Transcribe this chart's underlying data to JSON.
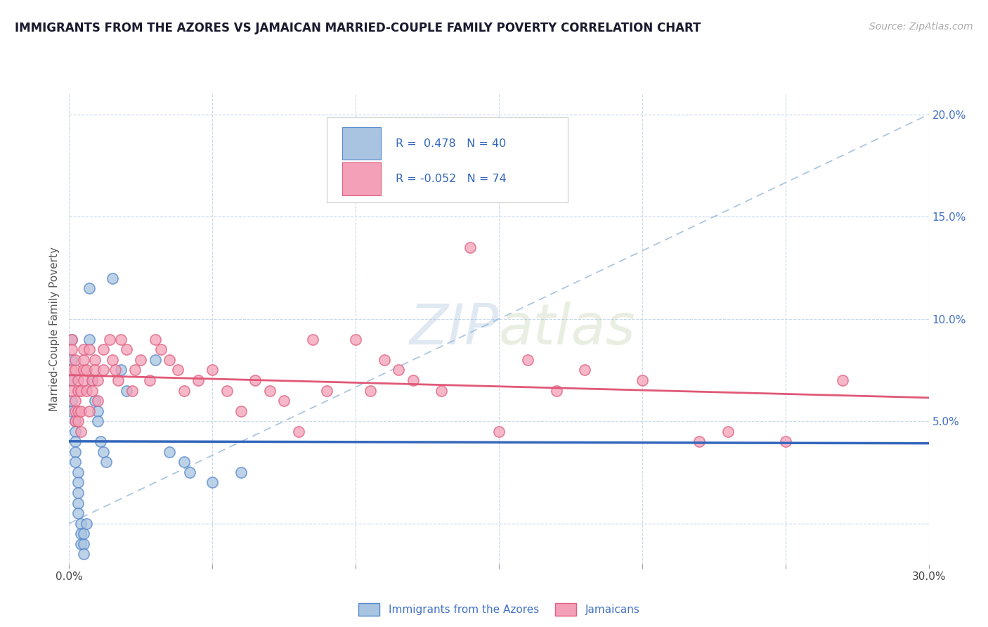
{
  "title": "IMMIGRANTS FROM THE AZORES VS JAMAICAN MARRIED-COUPLE FAMILY POVERTY CORRELATION CHART",
  "source": "Source: ZipAtlas.com",
  "ylabel": "Married-Couple Family Poverty",
  "xmin": 0.0,
  "xmax": 0.3,
  "ymin": -0.02,
  "ymax": 0.21,
  "x_ticks": [
    0.0,
    0.05,
    0.1,
    0.15,
    0.2,
    0.25,
    0.3
  ],
  "x_tick_labels": [
    "0.0%",
    "",
    "",
    "",
    "",
    "",
    "30.0%"
  ],
  "y_ticks": [
    0.0,
    0.05,
    0.1,
    0.15,
    0.2
  ],
  "right_tick_labels": [
    "",
    "5.0%",
    "10.0%",
    "15.0%",
    "20.0%"
  ],
  "color_azores": "#a8c4e0",
  "color_jamaican": "#f4a0b8",
  "color_azores_edge": "#5588cc",
  "color_jamaican_edge": "#e06080",
  "color_azores_line": "#3366bb",
  "color_jamaican_line": "#e05878",
  "color_diagonal": "#99b8d8",
  "watermark_text": "ZIPatlas",
  "legend_label1": "R =  0.478   N = 40",
  "legend_label2": "R = -0.052   N = 74",
  "bottom_label1": "Immigrants from the Azores",
  "bottom_label2": "Jamaicans",
  "azores_points": [
    [
      0.001,
      0.09
    ],
    [
      0.001,
      0.08
    ],
    [
      0.001,
      0.07
    ],
    [
      0.001,
      0.06
    ],
    [
      0.001,
      0.055
    ],
    [
      0.002,
      0.05
    ],
    [
      0.002,
      0.045
    ],
    [
      0.002,
      0.04
    ],
    [
      0.002,
      0.035
    ],
    [
      0.002,
      0.03
    ],
    [
      0.003,
      0.025
    ],
    [
      0.003,
      0.02
    ],
    [
      0.003,
      0.015
    ],
    [
      0.003,
      0.01
    ],
    [
      0.003,
      0.005
    ],
    [
      0.004,
      0.0
    ],
    [
      0.004,
      -0.005
    ],
    [
      0.004,
      -0.01
    ],
    [
      0.005,
      -0.01
    ],
    [
      0.005,
      -0.015
    ],
    [
      0.005,
      -0.005
    ],
    [
      0.006,
      0.0
    ],
    [
      0.007,
      0.115
    ],
    [
      0.007,
      0.09
    ],
    [
      0.008,
      0.07
    ],
    [
      0.009,
      0.06
    ],
    [
      0.01,
      0.055
    ],
    [
      0.01,
      0.05
    ],
    [
      0.011,
      0.04
    ],
    [
      0.012,
      0.035
    ],
    [
      0.013,
      0.03
    ],
    [
      0.015,
      0.12
    ],
    [
      0.018,
      0.075
    ],
    [
      0.02,
      0.065
    ],
    [
      0.03,
      0.08
    ],
    [
      0.035,
      0.035
    ],
    [
      0.04,
      0.03
    ],
    [
      0.042,
      0.025
    ],
    [
      0.05,
      0.02
    ],
    [
      0.06,
      0.025
    ]
  ],
  "jamaican_points": [
    [
      0.001,
      0.09
    ],
    [
      0.001,
      0.085
    ],
    [
      0.001,
      0.075
    ],
    [
      0.001,
      0.07
    ],
    [
      0.001,
      0.065
    ],
    [
      0.002,
      0.06
    ],
    [
      0.002,
      0.055
    ],
    [
      0.002,
      0.05
    ],
    [
      0.002,
      0.075
    ],
    [
      0.002,
      0.08
    ],
    [
      0.003,
      0.07
    ],
    [
      0.003,
      0.065
    ],
    [
      0.003,
      0.055
    ],
    [
      0.003,
      0.05
    ],
    [
      0.004,
      0.045
    ],
    [
      0.004,
      0.055
    ],
    [
      0.004,
      0.065
    ],
    [
      0.005,
      0.07
    ],
    [
      0.005,
      0.075
    ],
    [
      0.005,
      0.08
    ],
    [
      0.005,
      0.085
    ],
    [
      0.006,
      0.075
    ],
    [
      0.006,
      0.065
    ],
    [
      0.007,
      0.055
    ],
    [
      0.007,
      0.085
    ],
    [
      0.008,
      0.07
    ],
    [
      0.008,
      0.065
    ],
    [
      0.009,
      0.08
    ],
    [
      0.009,
      0.075
    ],
    [
      0.01,
      0.06
    ],
    [
      0.01,
      0.07
    ],
    [
      0.012,
      0.075
    ],
    [
      0.012,
      0.085
    ],
    [
      0.014,
      0.09
    ],
    [
      0.015,
      0.08
    ],
    [
      0.016,
      0.075
    ],
    [
      0.017,
      0.07
    ],
    [
      0.018,
      0.09
    ],
    [
      0.02,
      0.085
    ],
    [
      0.022,
      0.065
    ],
    [
      0.023,
      0.075
    ],
    [
      0.025,
      0.08
    ],
    [
      0.028,
      0.07
    ],
    [
      0.03,
      0.09
    ],
    [
      0.032,
      0.085
    ],
    [
      0.035,
      0.08
    ],
    [
      0.038,
      0.075
    ],
    [
      0.04,
      0.065
    ],
    [
      0.045,
      0.07
    ],
    [
      0.05,
      0.075
    ],
    [
      0.055,
      0.065
    ],
    [
      0.06,
      0.055
    ],
    [
      0.065,
      0.07
    ],
    [
      0.07,
      0.065
    ],
    [
      0.075,
      0.06
    ],
    [
      0.08,
      0.045
    ],
    [
      0.085,
      0.09
    ],
    [
      0.09,
      0.065
    ],
    [
      0.1,
      0.09
    ],
    [
      0.105,
      0.065
    ],
    [
      0.11,
      0.08
    ],
    [
      0.115,
      0.075
    ],
    [
      0.12,
      0.07
    ],
    [
      0.13,
      0.065
    ],
    [
      0.14,
      0.135
    ],
    [
      0.15,
      0.045
    ],
    [
      0.16,
      0.08
    ],
    [
      0.17,
      0.065
    ],
    [
      0.18,
      0.075
    ],
    [
      0.2,
      0.07
    ],
    [
      0.22,
      0.04
    ],
    [
      0.23,
      0.045
    ],
    [
      0.25,
      0.04
    ],
    [
      0.27,
      0.07
    ]
  ]
}
